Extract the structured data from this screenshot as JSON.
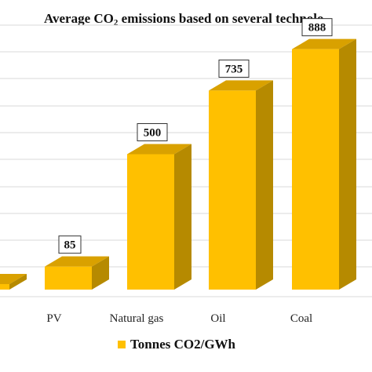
{
  "chart_data": {
    "type": "bar",
    "title_parts": [
      "Average CO",
      "2",
      " emissions based on several technolo"
    ],
    "categories": [
      "",
      "PV",
      "Natural gas",
      "Oil",
      "Coal"
    ],
    "values": [
      null,
      85,
      500,
      735,
      888
    ],
    "data_labels": [
      "",
      "85",
      "500",
      "735",
      "888"
    ],
    "legend": [
      "Tonnes CO2/GWh"
    ],
    "legend_position": "bottom",
    "xlabel": "",
    "ylabel": "",
    "ylim": [
      0,
      1000
    ],
    "grid": true,
    "colors": {
      "bar_front": "#FFC000",
      "bar_side": "#B68A00",
      "bar_top": "#D9A100",
      "grid": "#D9D9D9"
    }
  }
}
